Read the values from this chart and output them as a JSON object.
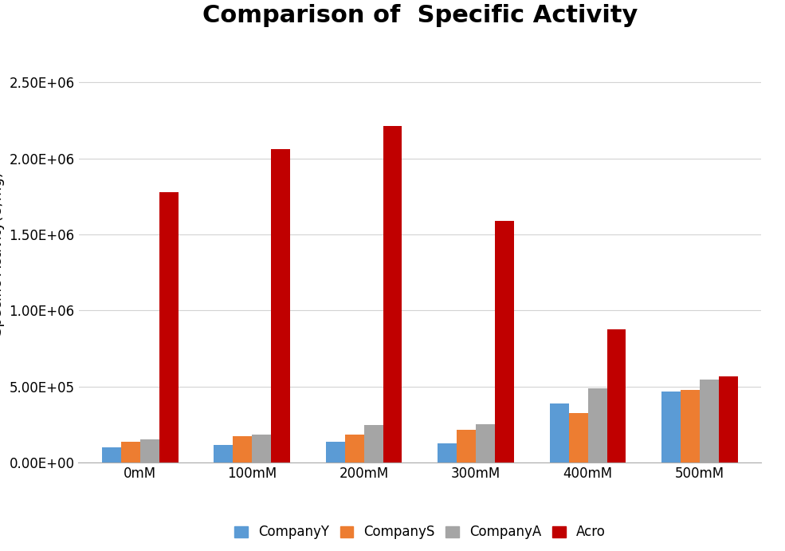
{
  "title": "Comparison of  Specific Activity",
  "ylabel": "Specific Activity(U/mg)",
  "categories": [
    "0mM",
    "100mM",
    "200mM",
    "300mM",
    "400mM",
    "500mM"
  ],
  "series": {
    "CompanyY": [
      100000,
      120000,
      140000,
      130000,
      390000,
      470000
    ],
    "CompanyS": [
      140000,
      175000,
      185000,
      215000,
      325000,
      480000
    ],
    "CompanyA": [
      155000,
      185000,
      250000,
      255000,
      490000,
      545000
    ],
    "Acro": [
      1780000,
      2060000,
      2210000,
      1590000,
      875000,
      570000
    ]
  },
  "colors": {
    "CompanyY": "#5B9BD5",
    "CompanyS": "#ED7D31",
    "CompanyA": "#A5A5A5",
    "Acro": "#C00000"
  },
  "ylim": [
    0,
    2750000
  ],
  "yticks": [
    0,
    500000,
    1000000,
    1500000,
    2000000,
    2500000
  ],
  "ytick_labels": [
    "0.00E+00",
    "5.00E+05",
    "1.00E+06",
    "1.50E+06",
    "2.00E+06",
    "2.50E+06"
  ],
  "legend_order": [
    "CompanyY",
    "CompanyS",
    "CompanyA",
    "Acro"
  ],
  "bar_width": 0.17,
  "title_fontsize": 22,
  "axis_label_fontsize": 13,
  "tick_fontsize": 12,
  "legend_fontsize": 12,
  "background_color": "#FFFFFF",
  "grid_color": "#D3D3D3"
}
